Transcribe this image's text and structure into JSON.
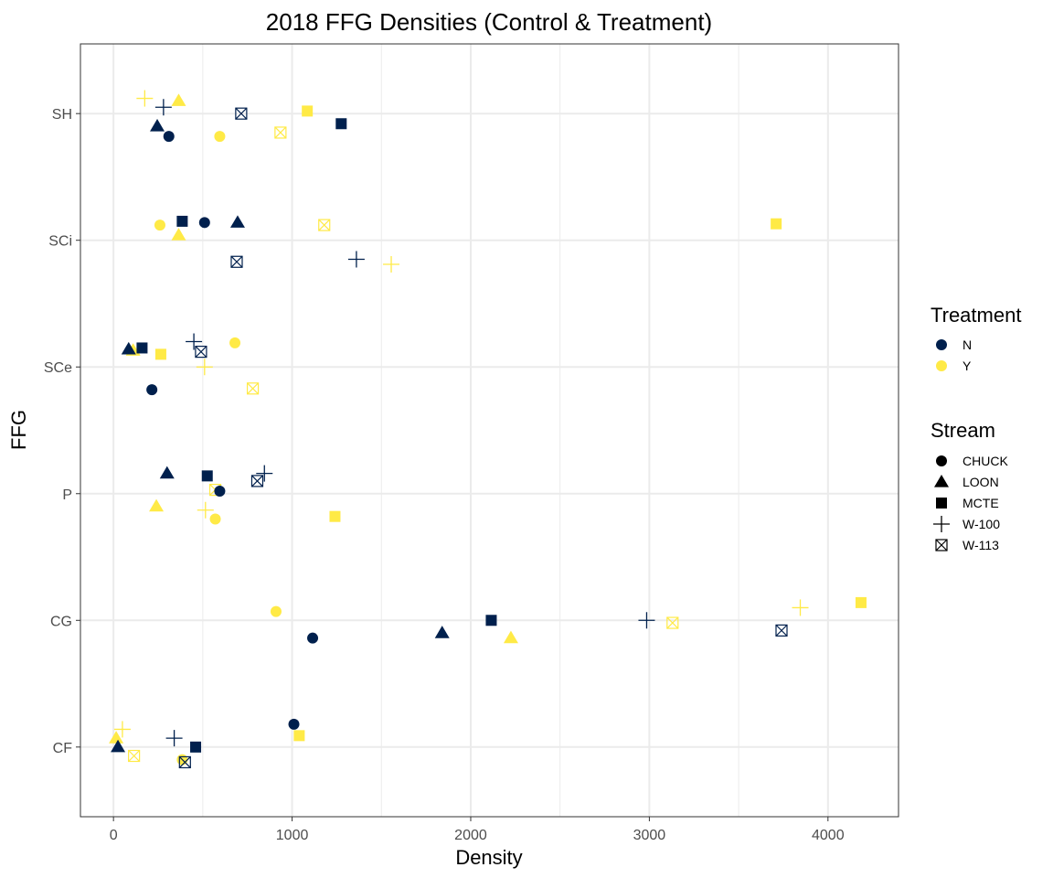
{
  "chart_data": {
    "type": "scatter",
    "title": "2018 FFG Densities (Control & Treatment)",
    "xlabel": "Density",
    "ylabel": "FFG",
    "xlim": [
      -185,
      4395
    ],
    "x_ticks": [
      0,
      1000,
      2000,
      3000,
      4000
    ],
    "categories": [
      "CF",
      "CG",
      "P",
      "SCe",
      "SCi",
      "SH"
    ],
    "grid": true,
    "legend_placement": "right",
    "colors": {
      "N": "#00204d",
      "Y": "#ffea46"
    },
    "legends": {
      "treatment": {
        "title": "Treatment",
        "items": [
          "N",
          "Y"
        ]
      },
      "stream": {
        "title": "Stream",
        "items": [
          {
            "label": "CHUCK",
            "shape": "circle"
          },
          {
            "label": "LOON",
            "shape": "triangle"
          },
          {
            "label": "MCTE",
            "shape": "square"
          },
          {
            "label": "W-100",
            "shape": "plus"
          },
          {
            "label": "W-113",
            "shape": "boxx"
          }
        ]
      }
    },
    "points": [
      {
        "ffg": "SH",
        "jitter": -0.18,
        "x": 310,
        "treatment": "N",
        "stream": "CHUCK"
      },
      {
        "ffg": "SH",
        "jitter": -0.1,
        "x": 245,
        "treatment": "N",
        "stream": "LOON"
      },
      {
        "ffg": "SH",
        "jitter": -0.08,
        "x": 1275,
        "treatment": "N",
        "stream": "MCTE"
      },
      {
        "ffg": "SH",
        "jitter": 0.05,
        "x": 280,
        "treatment": "N",
        "stream": "W-100"
      },
      {
        "ffg": "SH",
        "jitter": 0.0,
        "x": 715,
        "treatment": "N",
        "stream": "W-113"
      },
      {
        "ffg": "SH",
        "jitter": -0.18,
        "x": 595,
        "treatment": "Y",
        "stream": "CHUCK"
      },
      {
        "ffg": "SH",
        "jitter": 0.1,
        "x": 365,
        "treatment": "Y",
        "stream": "LOON"
      },
      {
        "ffg": "SH",
        "jitter": 0.02,
        "x": 1085,
        "treatment": "Y",
        "stream": "MCTE"
      },
      {
        "ffg": "SH",
        "jitter": 0.12,
        "x": 175,
        "treatment": "Y",
        "stream": "W-100"
      },
      {
        "ffg": "SH",
        "jitter": -0.15,
        "x": 935,
        "treatment": "Y",
        "stream": "W-113"
      },
      {
        "ffg": "SCi",
        "jitter": 0.14,
        "x": 510,
        "treatment": "N",
        "stream": "CHUCK"
      },
      {
        "ffg": "SCi",
        "jitter": 0.14,
        "x": 695,
        "treatment": "N",
        "stream": "LOON"
      },
      {
        "ffg": "SCi",
        "jitter": 0.15,
        "x": 385,
        "treatment": "N",
        "stream": "MCTE"
      },
      {
        "ffg": "SCi",
        "jitter": -0.15,
        "x": 1360,
        "treatment": "N",
        "stream": "W-100"
      },
      {
        "ffg": "SCi",
        "jitter": -0.17,
        "x": 690,
        "treatment": "N",
        "stream": "W-113"
      },
      {
        "ffg": "SCi",
        "jitter": 0.12,
        "x": 260,
        "treatment": "Y",
        "stream": "CHUCK"
      },
      {
        "ffg": "SCi",
        "jitter": 0.04,
        "x": 365,
        "treatment": "Y",
        "stream": "LOON"
      },
      {
        "ffg": "SCi",
        "jitter": 0.13,
        "x": 3710,
        "treatment": "Y",
        "stream": "MCTE"
      },
      {
        "ffg": "SCi",
        "jitter": -0.19,
        "x": 1555,
        "treatment": "Y",
        "stream": "W-100"
      },
      {
        "ffg": "SCi",
        "jitter": 0.12,
        "x": 1180,
        "treatment": "Y",
        "stream": "W-113"
      },
      {
        "ffg": "SCe",
        "jitter": -0.18,
        "x": 215,
        "treatment": "N",
        "stream": "CHUCK"
      },
      {
        "ffg": "SCe",
        "jitter": 0.14,
        "x": 85,
        "treatment": "N",
        "stream": "LOON"
      },
      {
        "ffg": "SCe",
        "jitter": 0.15,
        "x": 160,
        "treatment": "N",
        "stream": "MCTE"
      },
      {
        "ffg": "SCe",
        "jitter": 0.2,
        "x": 450,
        "treatment": "N",
        "stream": "W-100"
      },
      {
        "ffg": "SCe",
        "jitter": 0.12,
        "x": 490,
        "treatment": "N",
        "stream": "W-113"
      },
      {
        "ffg": "SCe",
        "jitter": 0.19,
        "x": 680,
        "treatment": "Y",
        "stream": "CHUCK"
      },
      {
        "ffg": "SCe",
        "jitter": 0.13,
        "x": 110,
        "treatment": "Y",
        "stream": "LOON"
      },
      {
        "ffg": "SCe",
        "jitter": 0.1,
        "x": 265,
        "treatment": "Y",
        "stream": "MCTE"
      },
      {
        "ffg": "SCe",
        "jitter": 0.0,
        "x": 510,
        "treatment": "Y",
        "stream": "W-100"
      },
      {
        "ffg": "SCe",
        "jitter": -0.17,
        "x": 780,
        "treatment": "Y",
        "stream": "W-113"
      },
      {
        "ffg": "P",
        "jitter": 0.02,
        "x": 595,
        "treatment": "N",
        "stream": "CHUCK"
      },
      {
        "ffg": "P",
        "jitter": 0.16,
        "x": 300,
        "treatment": "N",
        "stream": "LOON"
      },
      {
        "ffg": "P",
        "jitter": 0.14,
        "x": 525,
        "treatment": "N",
        "stream": "MCTE"
      },
      {
        "ffg": "P",
        "jitter": 0.16,
        "x": 845,
        "treatment": "N",
        "stream": "W-100"
      },
      {
        "ffg": "P",
        "jitter": 0.1,
        "x": 805,
        "treatment": "N",
        "stream": "W-113"
      },
      {
        "ffg": "P",
        "jitter": -0.2,
        "x": 570,
        "treatment": "Y",
        "stream": "CHUCK"
      },
      {
        "ffg": "P",
        "jitter": -0.1,
        "x": 240,
        "treatment": "Y",
        "stream": "LOON"
      },
      {
        "ffg": "P",
        "jitter": -0.18,
        "x": 1240,
        "treatment": "Y",
        "stream": "MCTE"
      },
      {
        "ffg": "P",
        "jitter": -0.13,
        "x": 515,
        "treatment": "Y",
        "stream": "W-100"
      },
      {
        "ffg": "P",
        "jitter": 0.03,
        "x": 570,
        "treatment": "Y",
        "stream": "W-113"
      },
      {
        "ffg": "CG",
        "jitter": -0.14,
        "x": 1115,
        "treatment": "N",
        "stream": "CHUCK"
      },
      {
        "ffg": "CG",
        "jitter": -0.1,
        "x": 1840,
        "treatment": "N",
        "stream": "LOON"
      },
      {
        "ffg": "CG",
        "jitter": 0.0,
        "x": 2115,
        "treatment": "N",
        "stream": "MCTE"
      },
      {
        "ffg": "CG",
        "jitter": 0.0,
        "x": 2985,
        "treatment": "N",
        "stream": "W-100"
      },
      {
        "ffg": "CG",
        "jitter": -0.08,
        "x": 3740,
        "treatment": "N",
        "stream": "W-113"
      },
      {
        "ffg": "CG",
        "jitter": 0.07,
        "x": 910,
        "treatment": "Y",
        "stream": "CHUCK"
      },
      {
        "ffg": "CG",
        "jitter": -0.14,
        "x": 2225,
        "treatment": "Y",
        "stream": "LOON"
      },
      {
        "ffg": "CG",
        "jitter": 0.14,
        "x": 4185,
        "treatment": "Y",
        "stream": "MCTE"
      },
      {
        "ffg": "CG",
        "jitter": 0.1,
        "x": 3845,
        "treatment": "Y",
        "stream": "W-100"
      },
      {
        "ffg": "CG",
        "jitter": -0.02,
        "x": 3130,
        "treatment": "Y",
        "stream": "W-113"
      },
      {
        "ffg": "CF",
        "jitter": 0.18,
        "x": 1010,
        "treatment": "N",
        "stream": "CHUCK"
      },
      {
        "ffg": "CF",
        "jitter": 0.0,
        "x": 25,
        "treatment": "N",
        "stream": "LOON"
      },
      {
        "ffg": "CF",
        "jitter": 0.0,
        "x": 460,
        "treatment": "N",
        "stream": "MCTE"
      },
      {
        "ffg": "CF",
        "jitter": 0.07,
        "x": 340,
        "treatment": "N",
        "stream": "W-100"
      },
      {
        "ffg": "CF",
        "jitter": -0.12,
        "x": 400,
        "treatment": "N",
        "stream": "W-113"
      },
      {
        "ffg": "CF",
        "jitter": -0.1,
        "x": 385,
        "treatment": "Y",
        "stream": "CHUCK"
      },
      {
        "ffg": "CF",
        "jitter": 0.07,
        "x": 15,
        "treatment": "Y",
        "stream": "LOON"
      },
      {
        "ffg": "CF",
        "jitter": 0.09,
        "x": 1040,
        "treatment": "Y",
        "stream": "MCTE"
      },
      {
        "ffg": "CF",
        "jitter": 0.14,
        "x": 50,
        "treatment": "Y",
        "stream": "W-100"
      },
      {
        "ffg": "CF",
        "jitter": -0.07,
        "x": 115,
        "treatment": "Y",
        "stream": "W-113"
      }
    ]
  }
}
